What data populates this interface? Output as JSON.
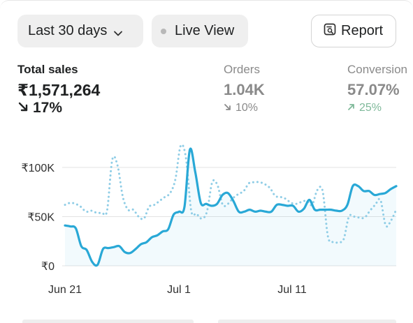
{
  "toolbar": {
    "period_label": "Last 30 days",
    "live_label": "Live View",
    "report_label": "Report"
  },
  "metrics": {
    "sales": {
      "label": "Total sales",
      "value": "₹1,571,264",
      "change": "17%",
      "direction": "down"
    },
    "orders": {
      "label": "Orders",
      "value": "1.04K",
      "change": "10%",
      "direction": "down"
    },
    "conversion": {
      "label": "Conversion",
      "value": "57.07%",
      "change": "25%",
      "direction": "up"
    }
  },
  "colors": {
    "accent": "#29a8d6",
    "comparison": "#8fcde6",
    "positive": "#7fb99a",
    "muted": "#8a8a8a"
  },
  "chart_data": {
    "type": "line",
    "x_ticks": [
      "Jun 21",
      "Jul 1",
      "Jul 11"
    ],
    "y_ticks": [
      "₹0",
      "₹50K",
      "₹100K"
    ],
    "ylim": [
      0,
      125000
    ],
    "grid": true,
    "series": [
      {
        "style": "solid",
        "values": [
          41000,
          40000,
          38000,
          20000,
          16000,
          4000,
          1000,
          17000,
          18000,
          19000,
          20000,
          14000,
          13000,
          17000,
          22000,
          24000,
          29000,
          31000,
          35000,
          37000,
          52000,
          55000,
          60000,
          118000,
          95000,
          64000,
          63000,
          61000,
          63000,
          72000,
          74000,
          66000,
          55000,
          55000,
          57000,
          55000,
          56000,
          55000,
          55000,
          62000,
          62000,
          61000,
          61000,
          55000,
          58000,
          67000,
          57000,
          57000,
          57000,
          57000,
          56000,
          56000,
          62000,
          81000,
          81000,
          76000,
          76000,
          72000,
          73000,
          74000,
          78000,
          81000
        ]
      },
      {
        "style": "dotted",
        "values": [
          62000,
          64000,
          63000,
          60000,
          55000,
          56000,
          54000,
          54000,
          56000,
          108000,
          102000,
          70000,
          57000,
          57000,
          50000,
          48000,
          60000,
          62000,
          66000,
          70000,
          74000,
          88000,
          122000,
          110000,
          56000,
          53000,
          48000,
          55000,
          85000,
          82000,
          62000,
          63000,
          69000,
          73000,
          76000,
          84000,
          85000,
          85000,
          83000,
          79000,
          71000,
          70000,
          68000,
          64000,
          63000,
          65000,
          66000,
          62000,
          77000,
          76000,
          30000,
          24000,
          24000,
          27000,
          50000,
          50000,
          49000,
          49000,
          56000,
          62000,
          67000,
          41000,
          46000,
          57000
        ]
      }
    ]
  }
}
